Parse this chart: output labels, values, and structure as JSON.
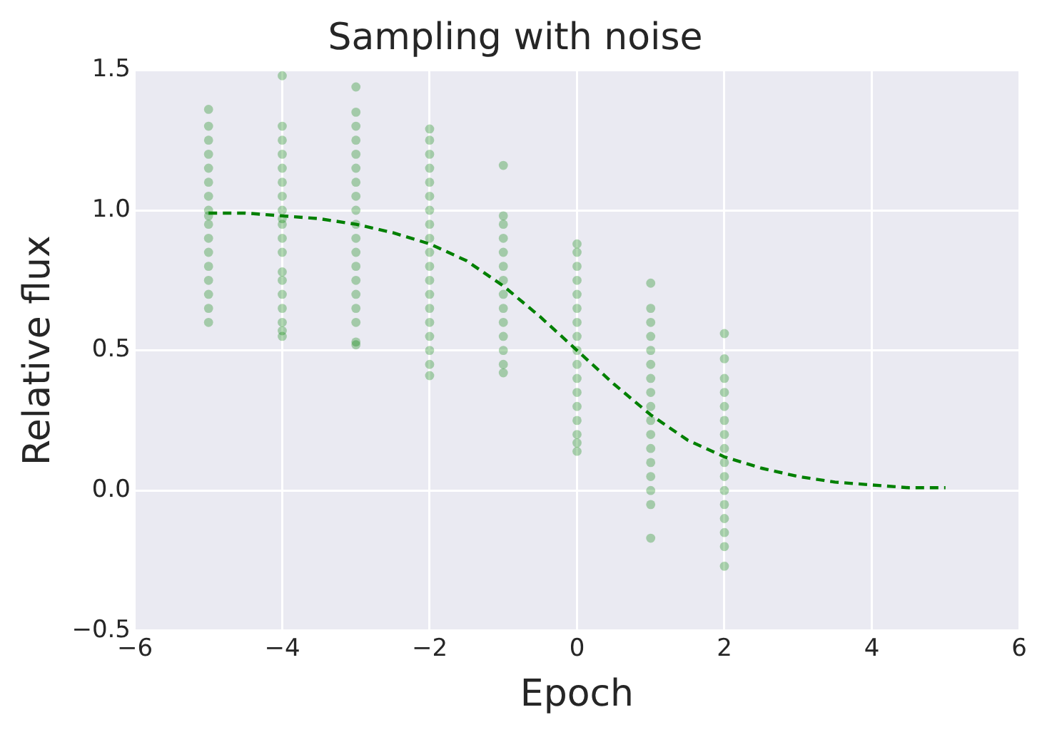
{
  "chart_data": {
    "type": "scatter",
    "title": "Sampling with noise",
    "xlabel": "Epoch",
    "ylabel": "Relative flux",
    "xlim": [
      -6,
      6
    ],
    "ylim": [
      -0.5,
      1.5
    ],
    "xticks": [
      {
        "value": -6,
        "label": "−6"
      },
      {
        "value": -4,
        "label": "−4"
      },
      {
        "value": -2,
        "label": "−2"
      },
      0,
      2,
      4,
      6
    ],
    "yticks": [
      {
        "value": -0.5,
        "label": "−0.5"
      },
      {
        "value": 0,
        "label": "0.0"
      },
      {
        "value": 0.5,
        "label": "0.5"
      },
      {
        "value": 1,
        "label": "1.0"
      },
      {
        "value": 1.5,
        "label": "1.5"
      }
    ],
    "grid": true,
    "legend": false,
    "series": [
      {
        "type": "scatter",
        "color": "#008000",
        "marker": "circle",
        "x": [
          -5,
          -5,
          -5,
          -5,
          -5,
          -5,
          -5,
          -5,
          -5,
          -5,
          -5,
          -5,
          -5,
          -5,
          -5,
          -5,
          -5,
          -4,
          -4,
          -4,
          -4,
          -4,
          -4,
          -4,
          -4,
          -4,
          -4,
          -4,
          -4,
          -4,
          -4,
          -4,
          -4,
          -4,
          -4,
          -4,
          -3,
          -3,
          -3,
          -3,
          -3,
          -3,
          -3,
          -3,
          -3,
          -3,
          -3,
          -3,
          -3,
          -3,
          -3,
          -3,
          -3,
          -3,
          -3,
          -2,
          -2,
          -2,
          -2,
          -2,
          -2,
          -2,
          -2,
          -2,
          -2,
          -2,
          -2,
          -2,
          -2,
          -2,
          -2,
          -2,
          -2,
          -2,
          -1,
          -1,
          -1,
          -1,
          -1,
          -1,
          -1,
          -1,
          -1,
          -1,
          -1,
          -1,
          -1,
          -1,
          0,
          0,
          0,
          0,
          0,
          0,
          0,
          0,
          0,
          0,
          0,
          0,
          0,
          0,
          0,
          0,
          0,
          1,
          1,
          1,
          1,
          1,
          1,
          1,
          1,
          1,
          1,
          1,
          1,
          1,
          1,
          1,
          1,
          1,
          2,
          2,
          2,
          2,
          2,
          2,
          2,
          2,
          2,
          2,
          2,
          2,
          2,
          2,
          2,
          2
        ],
        "values": [
          1.36,
          1.3,
          1.25,
          1.2,
          1.15,
          1.1,
          1.05,
          1.0,
          0.98,
          0.95,
          0.9,
          0.85,
          0.8,
          0.75,
          0.7,
          0.65,
          0.6,
          1.48,
          1.3,
          1.25,
          1.2,
          1.15,
          1.1,
          1.05,
          1.0,
          0.97,
          0.95,
          0.9,
          0.85,
          0.78,
          0.75,
          0.7,
          0.65,
          0.6,
          0.57,
          0.55,
          1.44,
          1.35,
          1.3,
          1.25,
          1.2,
          1.15,
          1.1,
          1.05,
          1.0,
          0.95,
          0.9,
          0.85,
          0.8,
          0.75,
          0.7,
          0.65,
          0.6,
          0.53,
          0.52,
          1.29,
          1.25,
          1.2,
          1.15,
          1.1,
          1.05,
          1.0,
          0.95,
          0.9,
          0.85,
          0.8,
          0.75,
          0.7,
          0.65,
          0.6,
          0.55,
          0.5,
          0.45,
          0.41,
          1.16,
          0.98,
          0.95,
          0.9,
          0.85,
          0.8,
          0.75,
          0.7,
          0.65,
          0.6,
          0.55,
          0.5,
          0.45,
          0.42,
          0.88,
          0.85,
          0.8,
          0.75,
          0.7,
          0.65,
          0.6,
          0.55,
          0.5,
          0.45,
          0.4,
          0.35,
          0.3,
          0.25,
          0.2,
          0.17,
          0.14,
          0.74,
          0.65,
          0.6,
          0.55,
          0.5,
          0.45,
          0.4,
          0.35,
          0.3,
          0.25,
          0.2,
          0.15,
          0.1,
          0.05,
          0.0,
          -0.05,
          -0.17,
          0.56,
          0.47,
          0.4,
          0.35,
          0.3,
          0.25,
          0.2,
          0.15,
          0.1,
          0.05,
          0.0,
          -0.05,
          -0.1,
          -0.15,
          -0.2,
          -0.27
        ]
      },
      {
        "type": "line",
        "color": "#008000",
        "marker": "none",
        "line_style": "dashed",
        "x": [
          -5,
          -4.5,
          -4,
          -3.5,
          -3,
          -2.5,
          -2,
          -1.5,
          -1,
          -0.5,
          0,
          0.5,
          1,
          1.5,
          2,
          2.5,
          3,
          3.5,
          4,
          4.5,
          5
        ],
        "values": [
          0.99,
          0.99,
          0.98,
          0.97,
          0.95,
          0.92,
          0.88,
          0.82,
          0.73,
          0.62,
          0.5,
          0.38,
          0.27,
          0.18,
          0.12,
          0.08,
          0.05,
          0.03,
          0.02,
          0.01,
          0.01
        ]
      }
    ]
  }
}
